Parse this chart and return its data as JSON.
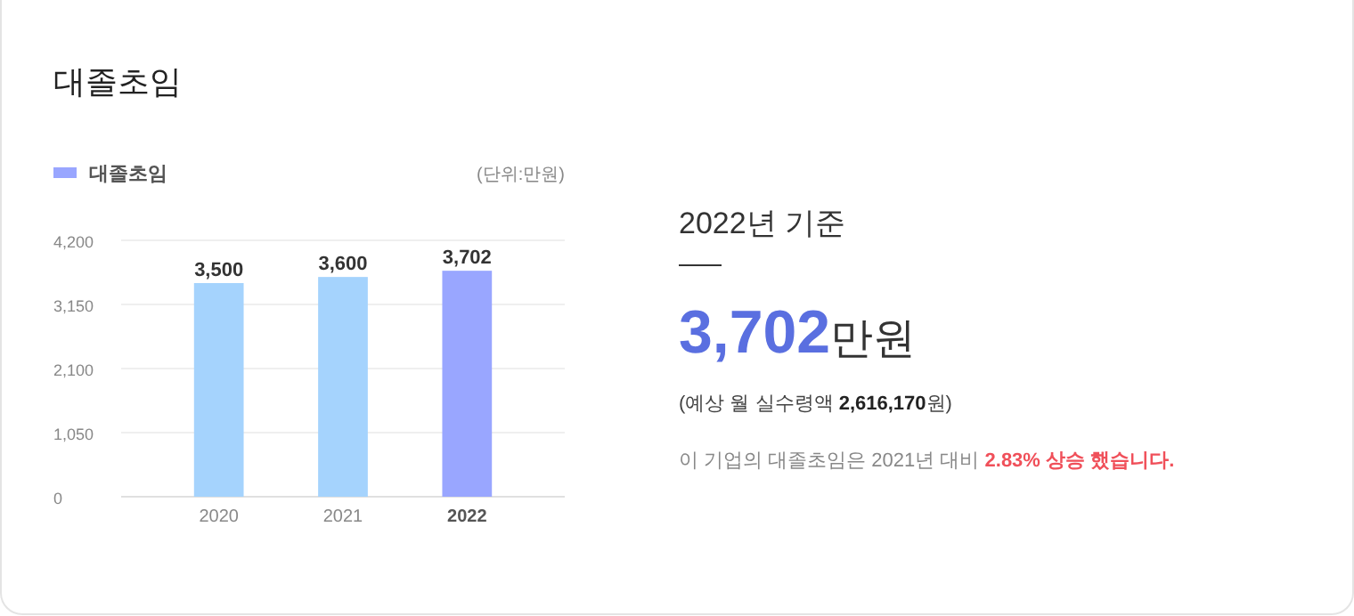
{
  "chart_data": {
    "type": "bar",
    "title": "대졸초임",
    "ylabel": "(단위:만원)",
    "categories": [
      "2020",
      "2021",
      "2022"
    ],
    "series": [
      {
        "name": "대졸초임",
        "color": "#99a6ff",
        "colors": [
          "#a5d3fd",
          "#a5d3fd",
          "#99a6ff"
        ],
        "values": [
          3500,
          3600,
          3702
        ],
        "value_labels": [
          "3,500",
          "3,600",
          "3,702"
        ]
      }
    ],
    "ylim": [
      0,
      4200
    ],
    "yticks": [
      0,
      {
        "value": 1050,
        "label": "1,050"
      },
      {
        "value": 2100,
        "label": "2,100"
      },
      {
        "value": 3150,
        "label": "3,150"
      },
      {
        "value": 4200,
        "label": "4,200"
      }
    ],
    "grid": "y",
    "legend": "top left",
    "annotations": [
      "2022년 기준",
      "3,702만원",
      "(예상 월 실수령액 2,616,170원)",
      "이 기업의 대졸초임은 2021년 대비 2.83% 상승 했습니다."
    ]
  }
}
